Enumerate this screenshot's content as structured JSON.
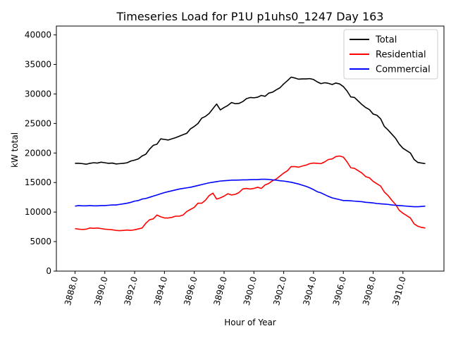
{
  "chart_data": {
    "type": "line",
    "title": "Timeseries Load for P1U p1uhs0_1247  Day 163",
    "xlabel": "Hour of Year",
    "ylabel": "kW total",
    "xlim": [
      3886.75,
      3912.75
    ],
    "ylim": [
      0,
      41500
    ],
    "xticks": [
      3888,
      3890,
      3892,
      3894,
      3896,
      3898,
      3900,
      3902,
      3904,
      3906,
      3908,
      3910
    ],
    "xtick_labels": [
      "3888.0",
      "3890.0",
      "3892.0",
      "3894.0",
      "3896.0",
      "3898.0",
      "3900.0",
      "3902.0",
      "3904.0",
      "3906.0",
      "3908.0",
      "3910.0"
    ],
    "yticks": [
      0,
      5000,
      10000,
      15000,
      20000,
      25000,
      30000,
      35000,
      40000
    ],
    "ytick_labels": [
      "0",
      "5000",
      "10000",
      "15000",
      "20000",
      "25000",
      "30000",
      "35000",
      "40000"
    ],
    "legend_position": "top-right",
    "x_start": 3888.0,
    "x_step": 0.25,
    "series": [
      {
        "name": "Total",
        "color": "#000000",
        "values": [
          18250,
          18250,
          18200,
          18100,
          18250,
          18350,
          18300,
          18450,
          18350,
          18250,
          18300,
          18150,
          18200,
          18250,
          18350,
          18650,
          18800,
          19000,
          19500,
          19800,
          20650,
          21300,
          21500,
          22400,
          22300,
          22200,
          22400,
          22600,
          22850,
          23100,
          23350,
          24100,
          24500,
          25000,
          25900,
          26200,
          26700,
          27500,
          28300,
          27300,
          27700,
          28050,
          28550,
          28350,
          28400,
          28700,
          29200,
          29400,
          29350,
          29450,
          29750,
          29600,
          30150,
          30300,
          30700,
          31050,
          31700,
          32250,
          32850,
          32700,
          32500,
          32550,
          32550,
          32600,
          32450,
          32050,
          31750,
          31900,
          31800,
          31600,
          31850,
          31700,
          31250,
          30500,
          29500,
          29400,
          28800,
          28200,
          27700,
          27350,
          26600,
          26400,
          25800,
          24500,
          23900,
          23200,
          22500,
          21500,
          20800,
          20400,
          20000,
          18900,
          18400,
          18300,
          18200
        ]
      },
      {
        "name": "Residential",
        "color": "#ff0000",
        "values": [
          7200,
          7100,
          7050,
          7100,
          7300,
          7250,
          7300,
          7200,
          7100,
          7050,
          7000,
          6900,
          6850,
          6900,
          6950,
          6900,
          7000,
          7150,
          7300,
          8100,
          8700,
          8850,
          9500,
          9200,
          9000,
          9000,
          9100,
          9300,
          9300,
          9500,
          10100,
          10450,
          10800,
          11500,
          11500,
          12000,
          12800,
          13200,
          12200,
          12400,
          12700,
          13100,
          12900,
          13000,
          13300,
          13900,
          14000,
          13900,
          14000,
          14200,
          14000,
          14600,
          14850,
          15300,
          15600,
          16100,
          16600,
          17000,
          17700,
          17700,
          17600,
          17800,
          17950,
          18200,
          18300,
          18250,
          18200,
          18500,
          18900,
          19000,
          19400,
          19500,
          19300,
          18500,
          17500,
          17400,
          17000,
          16600,
          16000,
          15800,
          15200,
          14800,
          14400,
          13400,
          12800,
          12000,
          11300,
          10300,
          9800,
          9400,
          9000,
          8000,
          7600,
          7400,
          7300
        ]
      },
      {
        "name": "Commercial",
        "color": "#0000ff",
        "values": [
          11000,
          11100,
          11050,
          11050,
          11100,
          11050,
          11050,
          11100,
          11100,
          11150,
          11200,
          11200,
          11300,
          11400,
          11500,
          11650,
          11850,
          11950,
          12200,
          12300,
          12500,
          12700,
          12900,
          13100,
          13300,
          13450,
          13600,
          13750,
          13900,
          14000,
          14100,
          14200,
          14350,
          14500,
          14650,
          14800,
          14950,
          15050,
          15150,
          15250,
          15300,
          15350,
          15400,
          15400,
          15420,
          15450,
          15450,
          15480,
          15500,
          15500,
          15550,
          15550,
          15520,
          15450,
          15400,
          15300,
          15250,
          15150,
          15050,
          14900,
          14750,
          14550,
          14350,
          14100,
          13800,
          13450,
          13250,
          12950,
          12650,
          12400,
          12250,
          12100,
          11950,
          11950,
          11900,
          11850,
          11800,
          11750,
          11650,
          11600,
          11550,
          11450,
          11400,
          11350,
          11300,
          11200,
          11150,
          11100,
          11050,
          11000,
          10950,
          10900,
          10900,
          10950,
          11000
        ]
      }
    ]
  }
}
